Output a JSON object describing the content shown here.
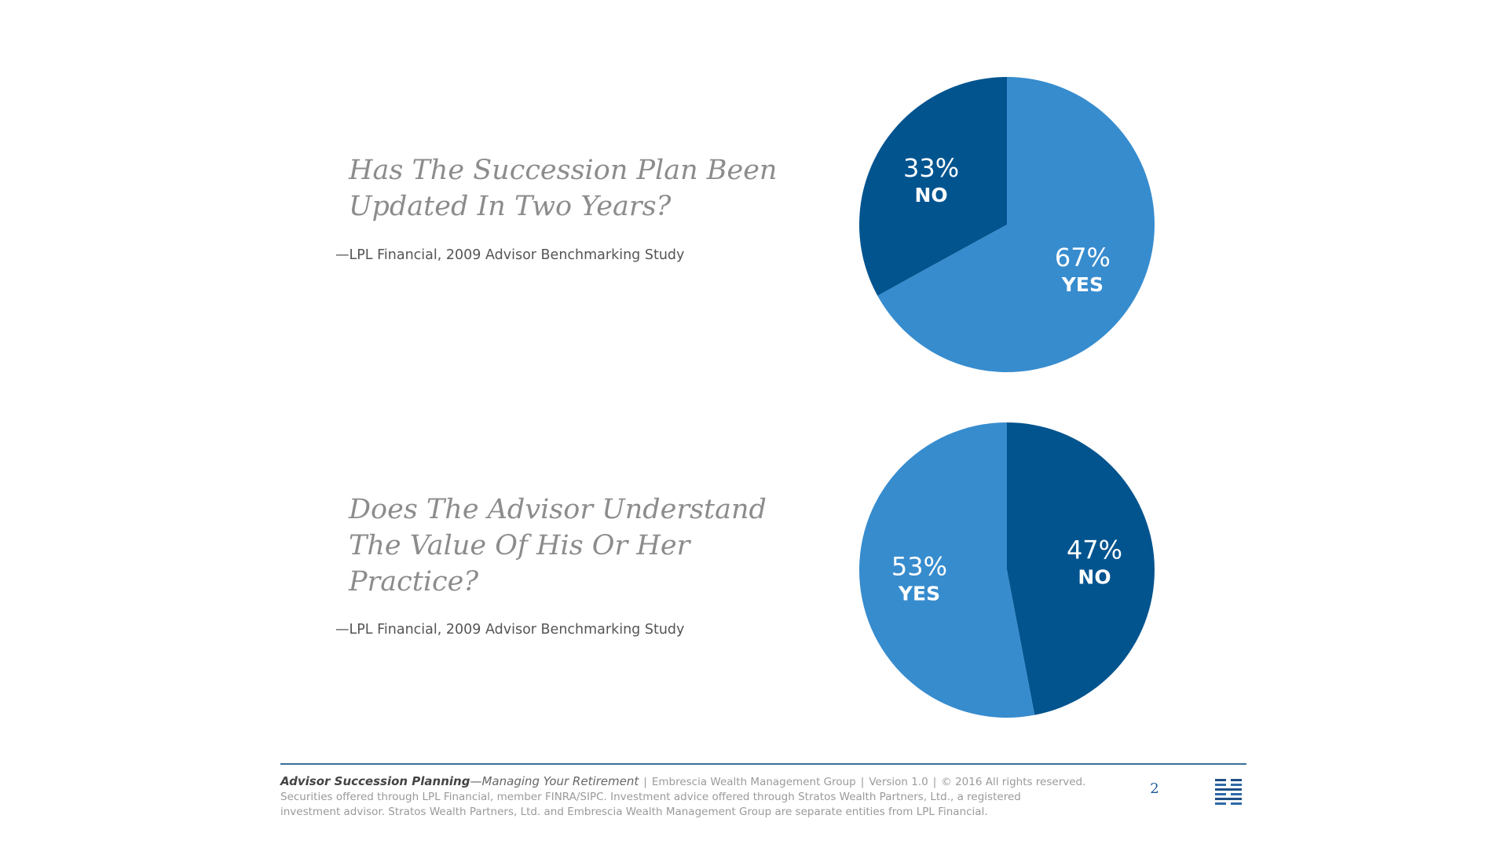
{
  "question_1": {
    "line1": "Has The Succession Plan Been",
    "line2": "Updated In Two Years?",
    "source": "—LPL Financial, 2009 Advisor Benchmarking Study"
  },
  "question_2": {
    "line1": "Does The Advisor Understand",
    "line2": "The Value Of His Or Her",
    "line3": "Practice?",
    "source": "—LPL Financial, 2009 Advisor Benchmarking Study"
  },
  "colors": {
    "dark_blue": "#02548f",
    "light_blue": "#378cce",
    "footer_rule": "#3a6f9a"
  },
  "chart_data": [
    {
      "type": "pie",
      "slices": [
        {
          "label": "YES",
          "value": 67,
          "display": "67%",
          "color": "#378cce"
        },
        {
          "label": "NO",
          "value": 33,
          "display": "33%",
          "color": "#02548f"
        }
      ]
    },
    {
      "type": "pie",
      "slices": [
        {
          "label": "NO",
          "value": 47,
          "display": "47%",
          "color": "#02548f"
        },
        {
          "label": "YES",
          "value": 53,
          "display": "53%",
          "color": "#378cce"
        }
      ]
    }
  ],
  "footer": {
    "title_bold": "Advisor Succession Planning",
    "title_italic": "—Managing Your Retirement",
    "separator": "|",
    "company": "Embrescia Wealth Management Group",
    "version": "Version 1.0",
    "rights": "© 2016 All rights reserved.",
    "disclaimer_line1": "Securities offered through LPL Financial, member FINRA/SIPC. Investment advice offered through Stratos Wealth Partners, Ltd., a registered",
    "disclaimer_line2": "investment advisor. Stratos Wealth Partners, Ltd. and Embrescia Wealth Management Group are separate entities from LPL Financial.",
    "page_number": "2",
    "logo_icon": "stacked-bars-logo-icon"
  }
}
